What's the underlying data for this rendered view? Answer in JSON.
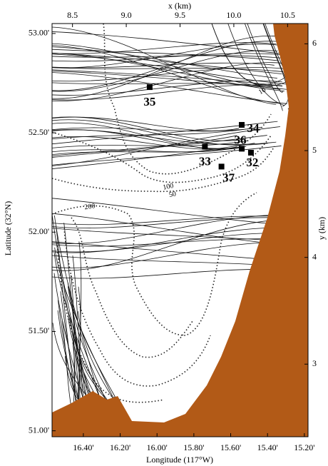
{
  "chart_data": {
    "type": "map",
    "x_label": "Longitude (117°W)",
    "y_label": "Latitude (32°N)",
    "x2_label": "x (km)",
    "y2_label": "y (km)",
    "xlim": [
      16.57,
      15.18
    ],
    "xticks": [
      {
        "value": 16.4,
        "label": "16.40'"
      },
      {
        "value": 16.2,
        "label": "16.20'"
      },
      {
        "value": 16.0,
        "label": "16.00'"
      },
      {
        "value": 15.8,
        "label": "15.80'"
      },
      {
        "value": 15.6,
        "label": "15.60'"
      },
      {
        "value": 15.4,
        "label": "15.40'"
      },
      {
        "value": 15.2,
        "label": "15.20'"
      }
    ],
    "ylim": [
      50.97,
      53.05
    ],
    "yticks": [
      {
        "value": 51.0,
        "label": "51.00'"
      },
      {
        "value": 51.5,
        "label": "51.50'"
      },
      {
        "value": 52.0,
        "label": "52.00'"
      },
      {
        "value": 52.5,
        "label": "52.50'"
      },
      {
        "value": 53.0,
        "label": "53.00'"
      }
    ],
    "x2lim": [
      8.31,
      10.69
    ],
    "x2ticks": [
      8.5,
      {
        "value": 9,
        "label": "9.0"
      },
      9.5,
      {
        "value": 10,
        "label": "10.0"
      },
      10.5
    ],
    "y2lim": [
      2.32,
      6.19
    ],
    "y2ticks": [
      3,
      4,
      5,
      6
    ],
    "stations": [
      {
        "name": "35",
        "lon": 16.04,
        "lat": 52.73
      },
      {
        "name": "34",
        "lon": 15.54,
        "lat": 52.54
      },
      {
        "name": "36",
        "lon": 15.54,
        "lat": 52.42
      },
      {
        "name": "33",
        "lon": 15.74,
        "lat": 52.43
      },
      {
        "name": "32",
        "lon": 15.49,
        "lat": 52.4
      },
      {
        "name": "37",
        "lon": 15.65,
        "lat": 52.33
      }
    ],
    "annotations": [
      "10",
      "100",
      "50",
      "200"
    ],
    "land_color": "#b25a17",
    "station_color": "#000000"
  }
}
